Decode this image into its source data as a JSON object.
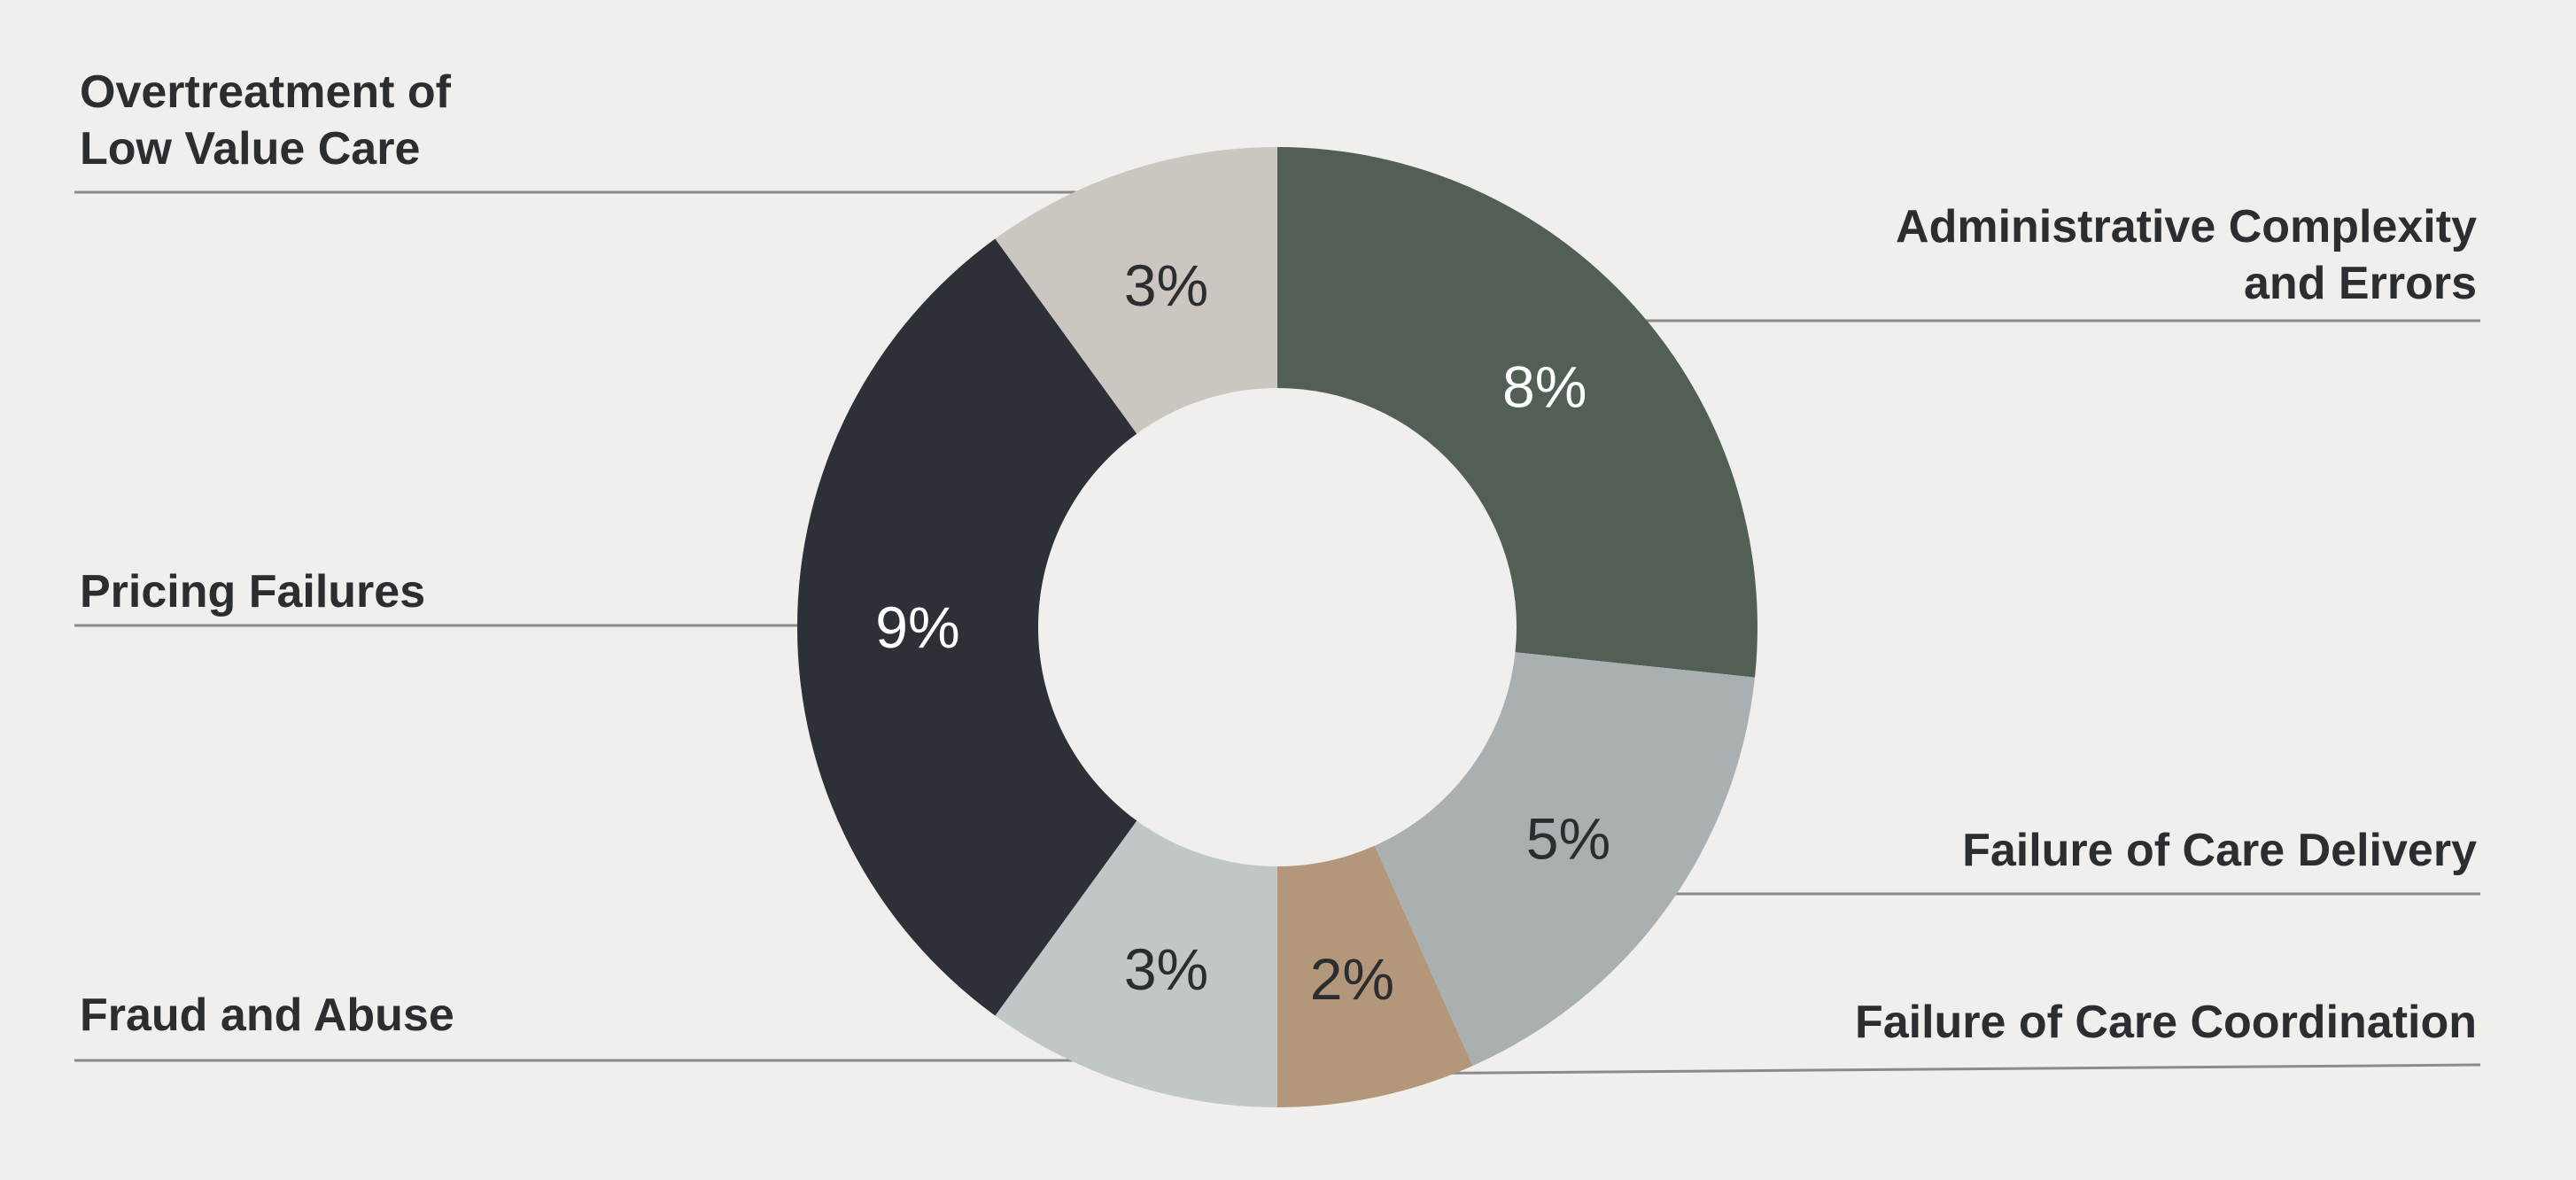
{
  "chart_data": {
    "type": "pie",
    "variant": "donut",
    "title": "",
    "slices": [
      {
        "label": "Administrative Complexity\nand Errors",
        "value": 8,
        "display": "8%",
        "color": "#515f55",
        "text_color": "#ffffff"
      },
      {
        "label": "Failure of Care Delivery",
        "value": 5,
        "display": "5%",
        "color": "#aaafb1",
        "text_color": "#2b2d31"
      },
      {
        "label": "Failure of Care Coordination",
        "value": 2,
        "display": "2%",
        "color": "#b3977a",
        "text_color": "#2b2d31"
      },
      {
        "label": "Fraud and Abuse",
        "value": 3,
        "display": "3%",
        "color": "#c0c7c6",
        "text_color": "#2b2d31"
      },
      {
        "label": "Pricing Failures",
        "value": 9,
        "display": "9%",
        "color": "#2e3037",
        "text_color": "#ffffff"
      },
      {
        "label": "Overtreatment of\nLow Value Care",
        "value": 3,
        "display": "3%",
        "color": "#cbc6bf",
        "text_color": "#2b2d31"
      }
    ],
    "legend": "none",
    "leader_line_color": "#8a8a8a"
  }
}
